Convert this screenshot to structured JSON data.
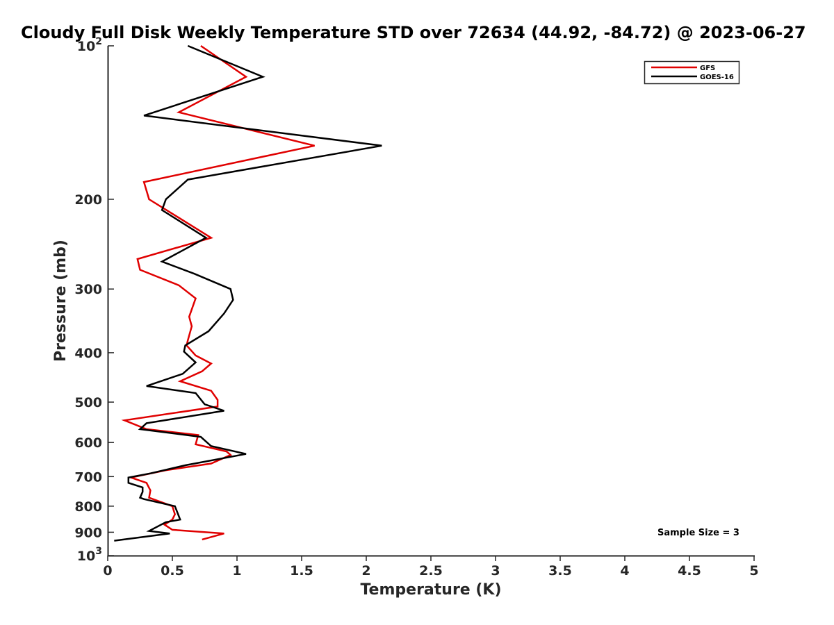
{
  "chart_data": {
    "type": "line",
    "title": "Cloudy Full Disk Weekly Temperature STD over 72634 (44.92, -84.72) @ 2023-06-27",
    "xlabel": "Temperature (K)",
    "ylabel": "Pressure (mb)",
    "xlim": [
      0,
      5
    ],
    "ylim": [
      100,
      1000
    ],
    "y_scale": "log",
    "y_reversed": true,
    "x_ticks": [
      "0",
      "0.5",
      "1",
      "1.5",
      "2",
      "2.5",
      "3",
      "3.5",
      "4",
      "4.5",
      "5"
    ],
    "y_ticks": [
      {
        "value": 100,
        "base": "10",
        "exp": "2"
      },
      {
        "value": 200,
        "label": "200"
      },
      {
        "value": 300,
        "label": "300"
      },
      {
        "value": 400,
        "label": "400"
      },
      {
        "value": 500,
        "label": "500"
      },
      {
        "value": 600,
        "label": "600"
      },
      {
        "value": 700,
        "label": "700"
      },
      {
        "value": 800,
        "label": "800"
      },
      {
        "value": 900,
        "label": "900"
      },
      {
        "value": 1000,
        "base": "10",
        "exp": "3"
      }
    ],
    "legend_position": "top-right",
    "grid": false,
    "annotation": "Sample Size = 3",
    "series": [
      {
        "name": "GFS",
        "color": "#e00000",
        "points": [
          [
            0.72,
            100
          ],
          [
            1.07,
            115
          ],
          [
            0.55,
            135
          ],
          [
            1.6,
            157
          ],
          [
            0.28,
            185
          ],
          [
            0.32,
            200
          ],
          [
            0.8,
            238
          ],
          [
            0.23,
            262
          ],
          [
            0.25,
            275
          ],
          [
            0.55,
            295
          ],
          [
            0.68,
            313
          ],
          [
            0.63,
            340
          ],
          [
            0.65,
            355
          ],
          [
            0.62,
            378
          ],
          [
            0.61,
            387
          ],
          [
            0.68,
            405
          ],
          [
            0.8,
            420
          ],
          [
            0.73,
            435
          ],
          [
            0.56,
            455
          ],
          [
            0.8,
            475
          ],
          [
            0.85,
            495
          ],
          [
            0.85,
            510
          ],
          [
            0.13,
            543
          ],
          [
            0.3,
            565
          ],
          [
            0.7,
            580
          ],
          [
            0.68,
            605
          ],
          [
            0.92,
            625
          ],
          [
            0.95,
            635
          ],
          [
            0.8,
            660
          ],
          [
            0.45,
            680
          ],
          [
            0.18,
            703
          ],
          [
            0.3,
            720
          ],
          [
            0.33,
            745
          ],
          [
            0.32,
            770
          ],
          [
            0.5,
            800
          ],
          [
            0.52,
            830
          ],
          [
            0.5,
            850
          ],
          [
            0.44,
            870
          ],
          [
            0.5,
            890
          ],
          [
            0.9,
            905
          ],
          [
            0.73,
            930
          ]
        ]
      },
      {
        "name": "GOES-16",
        "color": "#000000",
        "points": [
          [
            0.62,
            100
          ],
          [
            1.2,
            115
          ],
          [
            0.28,
            137
          ],
          [
            2.12,
            157
          ],
          [
            0.62,
            183
          ],
          [
            0.45,
            200
          ],
          [
            0.42,
            210
          ],
          [
            0.76,
            238
          ],
          [
            0.42,
            265
          ],
          [
            0.67,
            280
          ],
          [
            0.95,
            300
          ],
          [
            0.97,
            315
          ],
          [
            0.9,
            335
          ],
          [
            0.78,
            363
          ],
          [
            0.6,
            387
          ],
          [
            0.59,
            398
          ],
          [
            0.68,
            418
          ],
          [
            0.58,
            440
          ],
          [
            0.3,
            465
          ],
          [
            0.68,
            480
          ],
          [
            0.75,
            505
          ],
          [
            0.9,
            520
          ],
          [
            0.3,
            550
          ],
          [
            0.25,
            565
          ],
          [
            0.72,
            585
          ],
          [
            0.8,
            610
          ],
          [
            1.07,
            632
          ],
          [
            0.6,
            665
          ],
          [
            0.33,
            690
          ],
          [
            0.16,
            703
          ],
          [
            0.16,
            720
          ],
          [
            0.27,
            735
          ],
          [
            0.27,
            750
          ],
          [
            0.25,
            770
          ],
          [
            0.28,
            775
          ],
          [
            0.52,
            800
          ],
          [
            0.56,
            850
          ],
          [
            0.45,
            860
          ],
          [
            0.32,
            895
          ],
          [
            0.48,
            905
          ],
          [
            0.05,
            935
          ]
        ]
      }
    ]
  }
}
